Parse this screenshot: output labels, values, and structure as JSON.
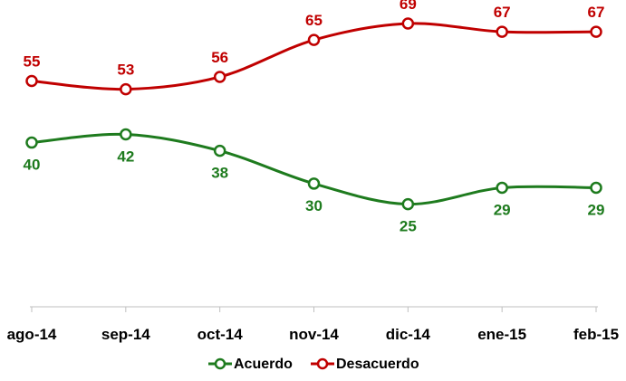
{
  "chart_data": {
    "type": "line",
    "categories": [
      "ago-14",
      "sep-14",
      "oct-14",
      "nov-14",
      "dic-14",
      "ene-15",
      "feb-15"
    ],
    "series": [
      {
        "name": "Acuerdo",
        "values": [
          40,
          42,
          38,
          30,
          25,
          29,
          29
        ],
        "color": "#1e7b1e",
        "label_position": "below"
      },
      {
        "name": "Desacuerdo",
        "values": [
          55,
          53,
          56,
          65,
          69,
          67,
          67
        ],
        "color": "#c00000",
        "label_position": "above"
      }
    ],
    "ylim": [
      0,
      75
    ],
    "grid": false,
    "legend": "bottom-center",
    "axis_color": "#bfbfbf"
  }
}
